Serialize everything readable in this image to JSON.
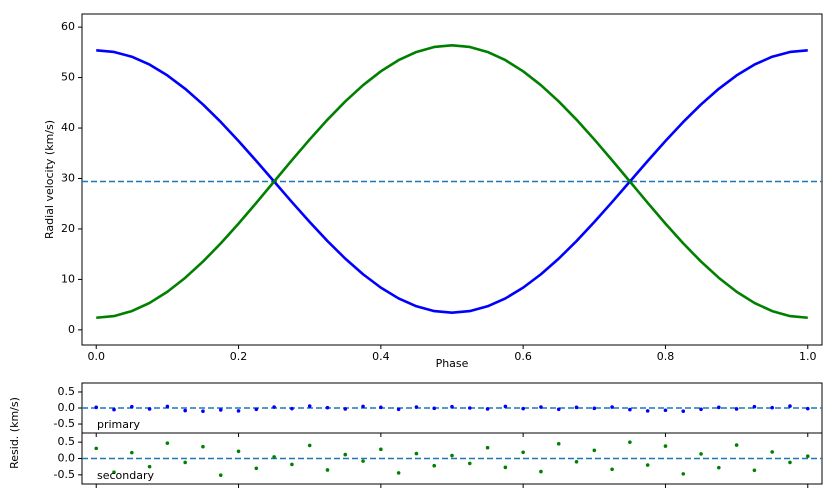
{
  "chart_data": [
    {
      "type": "line",
      "xlabel": "Phase",
      "ylabel": "Radial velocity (km/s)",
      "xlim": [
        -0.02,
        1.02
      ],
      "ylim": [
        -3,
        62.6
      ],
      "xticks": [
        {
          "value": 0,
          "label": "0.0"
        },
        0.2,
        0.4,
        0.6,
        0.8,
        {
          "value": 1,
          "label": "1.0"
        }
      ],
      "yticks": [
        0,
        10,
        20,
        30,
        40,
        50,
        60
      ],
      "hline": 29.4,
      "hline_color": "#1f77b4",
      "x": [
        0,
        0.025,
        0.05,
        0.075,
        0.1,
        0.125,
        0.15,
        0.175,
        0.2,
        0.225,
        0.25,
        0.275,
        0.3,
        0.325,
        0.35,
        0.375,
        0.4,
        0.425,
        0.45,
        0.475,
        0.5,
        0.525,
        0.55,
        0.575,
        0.6,
        0.625,
        0.65,
        0.675,
        0.7,
        0.725,
        0.75,
        0.775,
        0.8,
        0.825,
        0.85,
        0.875,
        0.9,
        0.925,
        0.95,
        0.975,
        1
      ],
      "series": [
        {
          "color": "#0000ff",
          "values": [
            55.4,
            55.08,
            54.13,
            52.57,
            50.43,
            47.78,
            44.68,
            41.2,
            37.43,
            33.47,
            29.4,
            25.33,
            21.37,
            17.6,
            14.12,
            11.02,
            8.37,
            6.23,
            4.67,
            3.72,
            3.4,
            3.72,
            4.67,
            6.23,
            8.37,
            11.02,
            14.12,
            17.6,
            21.37,
            25.33,
            29.4,
            33.47,
            37.43,
            41.2,
            44.68,
            47.78,
            50.43,
            52.57,
            54.13,
            55.08,
            55.4
          ]
        },
        {
          "color": "#008000",
          "values": [
            2.4,
            2.73,
            3.72,
            5.34,
            7.56,
            10.31,
            13.53,
            17.14,
            21.06,
            25.18,
            29.4,
            33.62,
            37.74,
            41.66,
            45.27,
            48.49,
            51.24,
            53.46,
            55.08,
            56.07,
            56.4,
            56.07,
            55.08,
            53.46,
            51.24,
            48.49,
            45.27,
            41.66,
            37.74,
            33.62,
            29.4,
            25.18,
            21.06,
            17.14,
            13.53,
            10.31,
            7.56,
            5.34,
            3.72,
            2.73,
            2.4
          ]
        }
      ]
    },
    {
      "type": "scatter",
      "annotation": "primary",
      "ylabel": "Resid. (km/s)",
      "xlim": [
        -0.02,
        1.02
      ],
      "ylim": [
        -0.78,
        0.78
      ],
      "yticks": [
        0.5,
        {
          "value": 0,
          "label": "0.0"
        },
        -0.5
      ],
      "hline": 0,
      "hline_color": "#1f77b4",
      "color": "#0000ff",
      "x": [
        0,
        0.025,
        0.05,
        0.075,
        0.1,
        0.125,
        0.15,
        0.175,
        0.2,
        0.225,
        0.25,
        0.275,
        0.3,
        0.325,
        0.35,
        0.375,
        0.4,
        0.425,
        0.45,
        0.475,
        0.5,
        0.525,
        0.55,
        0.575,
        0.6,
        0.625,
        0.65,
        0.675,
        0.7,
        0.725,
        0.75,
        0.775,
        0.8,
        0.825,
        0.85,
        0.875,
        0.9,
        0.925,
        0.95,
        0.975,
        1
      ],
      "values": [
        0.02,
        -0.05,
        0.04,
        -0.03,
        0.05,
        -0.08,
        -0.1,
        -0.06,
        -0.09,
        -0.04,
        0.03,
        -0.02,
        0.06,
        0.01,
        -0.03,
        0.05,
        0.02,
        -0.04,
        0.03,
        -0.01,
        0.04,
        0.0,
        -0.03,
        0.05,
        -0.02,
        0.03,
        -0.04,
        0.02,
        -0.01,
        0.03,
        -0.05,
        -0.09,
        -0.07,
        -0.1,
        -0.04,
        0.02,
        -0.03,
        0.04,
        0.01,
        0.06,
        -0.02
      ]
    },
    {
      "type": "scatter",
      "annotation": "secondary",
      "xlim": [
        -0.02,
        1.02
      ],
      "ylim": [
        -0.78,
        0.78
      ],
      "yticks": [
        0.5,
        {
          "value": 0,
          "label": "0.0"
        },
        -0.5
      ],
      "hline": 0,
      "hline_color": "#1f77b4",
      "color": "#008000",
      "x": [
        0,
        0.025,
        0.05,
        0.075,
        0.1,
        0.125,
        0.15,
        0.175,
        0.2,
        0.225,
        0.25,
        0.275,
        0.3,
        0.325,
        0.35,
        0.375,
        0.4,
        0.425,
        0.45,
        0.475,
        0.5,
        0.525,
        0.55,
        0.575,
        0.6,
        0.625,
        0.65,
        0.675,
        0.7,
        0.725,
        0.75,
        0.775,
        0.8,
        0.825,
        0.85,
        0.875,
        0.9,
        0.925,
        0.95,
        0.975,
        1
      ],
      "values": [
        0.31,
        -0.42,
        0.18,
        -0.25,
        0.47,
        -0.12,
        0.36,
        -0.51,
        0.22,
        -0.3,
        0.05,
        -0.18,
        0.4,
        -0.35,
        0.12,
        -0.08,
        0.28,
        -0.44,
        0.15,
        -0.22,
        0.09,
        -0.15,
        0.33,
        -0.27,
        0.19,
        -0.4,
        0.45,
        -0.1,
        0.25,
        -0.33,
        0.5,
        -0.2,
        0.38,
        -0.47,
        0.14,
        -0.28,
        0.41,
        -0.36,
        0.2,
        -0.12,
        0.07
      ]
    }
  ]
}
